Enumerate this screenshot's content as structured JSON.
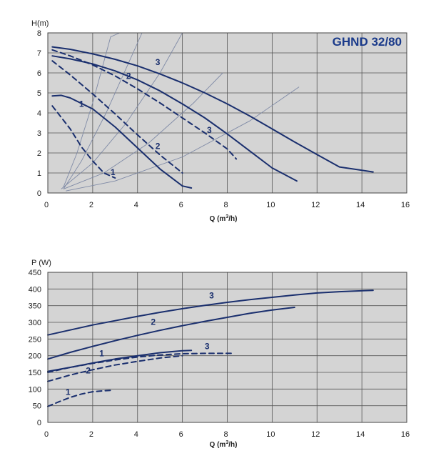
{
  "colors": {
    "background": "#ffffff",
    "plot_bg": "#d4d4d4",
    "grid": "#555555",
    "curve": "#1a2f6e",
    "iso": "#7f8aa6"
  },
  "chart_data": [
    {
      "type": "line",
      "title": "GHND 32/80",
      "ylabel": "H(m)",
      "xlabel": "Q (m",
      "xlabel_sup": "3",
      "xlabel_end": "/h)",
      "xlim": [
        0,
        16
      ],
      "ylim": [
        0,
        8
      ],
      "xticks": [
        0,
        2,
        4,
        6,
        8,
        10,
        12,
        14,
        16
      ],
      "yticks": [
        0,
        1,
        2,
        3,
        4,
        5,
        6,
        7,
        8
      ],
      "grid": true,
      "series": [
        {
          "name": "3",
          "style": "solid",
          "x": [
            0.2,
            1,
            2,
            3,
            4,
            5,
            6,
            7,
            8,
            9,
            10,
            11,
            12,
            13,
            14.5
          ],
          "y": [
            7.3,
            7.18,
            6.95,
            6.68,
            6.35,
            5.95,
            5.5,
            5.0,
            4.45,
            3.85,
            3.2,
            2.55,
            1.92,
            1.3,
            1.05
          ]
        },
        {
          "name": "3",
          "style": "dashed",
          "x": [
            0.2,
            1,
            2,
            3,
            4,
            5,
            6,
            7,
            8,
            8.4
          ],
          "y": [
            7.15,
            6.85,
            6.4,
            5.85,
            5.2,
            4.5,
            3.75,
            3.0,
            2.2,
            1.7
          ]
        },
        {
          "name": "2",
          "style": "solid",
          "x": [
            0.2,
            1,
            2,
            3,
            4,
            5,
            6,
            7,
            8,
            9,
            10,
            11.1
          ],
          "y": [
            6.85,
            6.7,
            6.45,
            6.1,
            5.65,
            5.1,
            4.45,
            3.75,
            2.95,
            2.1,
            1.25,
            0.6
          ]
        },
        {
          "name": "2",
          "style": "dashed",
          "x": [
            0.2,
            1,
            2,
            3,
            4,
            5,
            6
          ],
          "y": [
            6.6,
            5.9,
            4.95,
            3.95,
            2.9,
            1.9,
            1.0
          ]
        },
        {
          "name": "1",
          "style": "solid",
          "x": [
            0.2,
            0.6,
            1,
            2,
            3,
            4,
            5,
            6,
            6.4
          ],
          "y": [
            4.85,
            4.88,
            4.75,
            4.2,
            3.3,
            2.25,
            1.2,
            0.35,
            0.25
          ]
        },
        {
          "name": "1",
          "style": "dashed",
          "x": [
            0.2,
            1,
            1.5,
            2,
            2.5,
            3
          ],
          "y": [
            4.35,
            3.2,
            2.3,
            1.6,
            1.0,
            0.75
          ]
        }
      ],
      "curve_labels": [
        {
          "text": "3",
          "x": 4.9,
          "y": 6.4
        },
        {
          "text": "2",
          "x": 3.6,
          "y": 5.7
        },
        {
          "text": "1",
          "x": 1.5,
          "y": 4.3
        },
        {
          "text": "3",
          "x": 7.2,
          "y": 3.0
        },
        {
          "text": "2",
          "x": 4.9,
          "y": 2.2
        },
        {
          "text": "1",
          "x": 2.9,
          "y": 0.9
        }
      ],
      "iso_lines": [
        {
          "x": [
            0.7,
            1.3,
            2.0,
            2.8,
            3.2
          ],
          "y": [
            0.3,
            2.0,
            4.5,
            7.8,
            8.0
          ]
        },
        {
          "x": [
            0.7,
            1.5,
            2.6,
            3.8,
            4.2
          ],
          "y": [
            0.2,
            1.6,
            4.0,
            7.0,
            8.0
          ]
        },
        {
          "x": [
            0.6,
            2.0,
            3.5,
            5.0,
            6.0
          ],
          "y": [
            0.2,
            1.5,
            3.5,
            6.0,
            8.0
          ]
        },
        {
          "x": [
            0.7,
            2.5,
            4.5,
            6.5,
            7.8
          ],
          "y": [
            0.2,
            1.0,
            2.5,
            4.5,
            6.0
          ]
        },
        {
          "x": [
            0.8,
            3.0,
            6.0,
            9.0,
            11.2
          ],
          "y": [
            0.1,
            0.6,
            1.8,
            3.6,
            5.3
          ]
        }
      ]
    },
    {
      "type": "line",
      "ylabel": "P (W)",
      "xlabel": "Q (m",
      "xlabel_sup": "3",
      "xlabel_end": "/h)",
      "xlim": [
        0,
        16
      ],
      "ylim": [
        0,
        450
      ],
      "xticks": [
        0,
        2,
        4,
        6,
        8,
        10,
        12,
        14,
        16
      ],
      "yticks": [
        0,
        50,
        100,
        150,
        200,
        250,
        300,
        350,
        400,
        450
      ],
      "grid": true,
      "series": [
        {
          "name": "3",
          "style": "solid",
          "x": [
            0,
            1,
            2,
            3,
            4,
            5,
            6,
            7,
            8,
            9,
            10,
            11,
            12,
            13,
            14.5
          ],
          "y": [
            262,
            277,
            292,
            305,
            318,
            330,
            341,
            351,
            360,
            368,
            375,
            382,
            388,
            392,
            396
          ]
        },
        {
          "name": "3",
          "style": "dashed",
          "x": [
            0,
            1,
            2,
            3,
            4,
            5,
            6,
            7,
            8.3
          ],
          "y": [
            150,
            165,
            177,
            187,
            196,
            202,
            206,
            207,
            207
          ]
        },
        {
          "name": "2",
          "style": "solid",
          "x": [
            0,
            1,
            2,
            3,
            4,
            5,
            6,
            7,
            8,
            9,
            10,
            11
          ],
          "y": [
            190,
            210,
            228,
            245,
            261,
            276,
            290,
            303,
            315,
            327,
            337,
            345
          ]
        },
        {
          "name": "2",
          "style": "dashed",
          "x": [
            0,
            1,
            2,
            3,
            4,
            5,
            6
          ],
          "y": [
            123,
            142,
            158,
            172,
            183,
            193,
            200
          ]
        },
        {
          "name": "1",
          "style": "solid",
          "x": [
            0,
            1,
            2,
            3,
            4,
            5,
            6,
            6.4
          ],
          "y": [
            153,
            165,
            178,
            190,
            200,
            209,
            215,
            216
          ]
        },
        {
          "name": "1",
          "style": "dashed",
          "x": [
            0,
            0.5,
            1,
            1.5,
            2,
            2.5,
            2.8
          ],
          "y": [
            48,
            62,
            75,
            85,
            92,
            95,
            96
          ]
        }
      ],
      "curve_labels": [
        {
          "text": "3",
          "x": 7.3,
          "y": 372
        },
        {
          "text": "2",
          "x": 4.7,
          "y": 292
        },
        {
          "text": "1",
          "x": 2.4,
          "y": 198
        },
        {
          "text": "3",
          "x": 7.1,
          "y": 220
        },
        {
          "text": "2",
          "x": 1.8,
          "y": 147
        },
        {
          "text": "1",
          "x": 0.9,
          "y": 82
        }
      ]
    }
  ]
}
